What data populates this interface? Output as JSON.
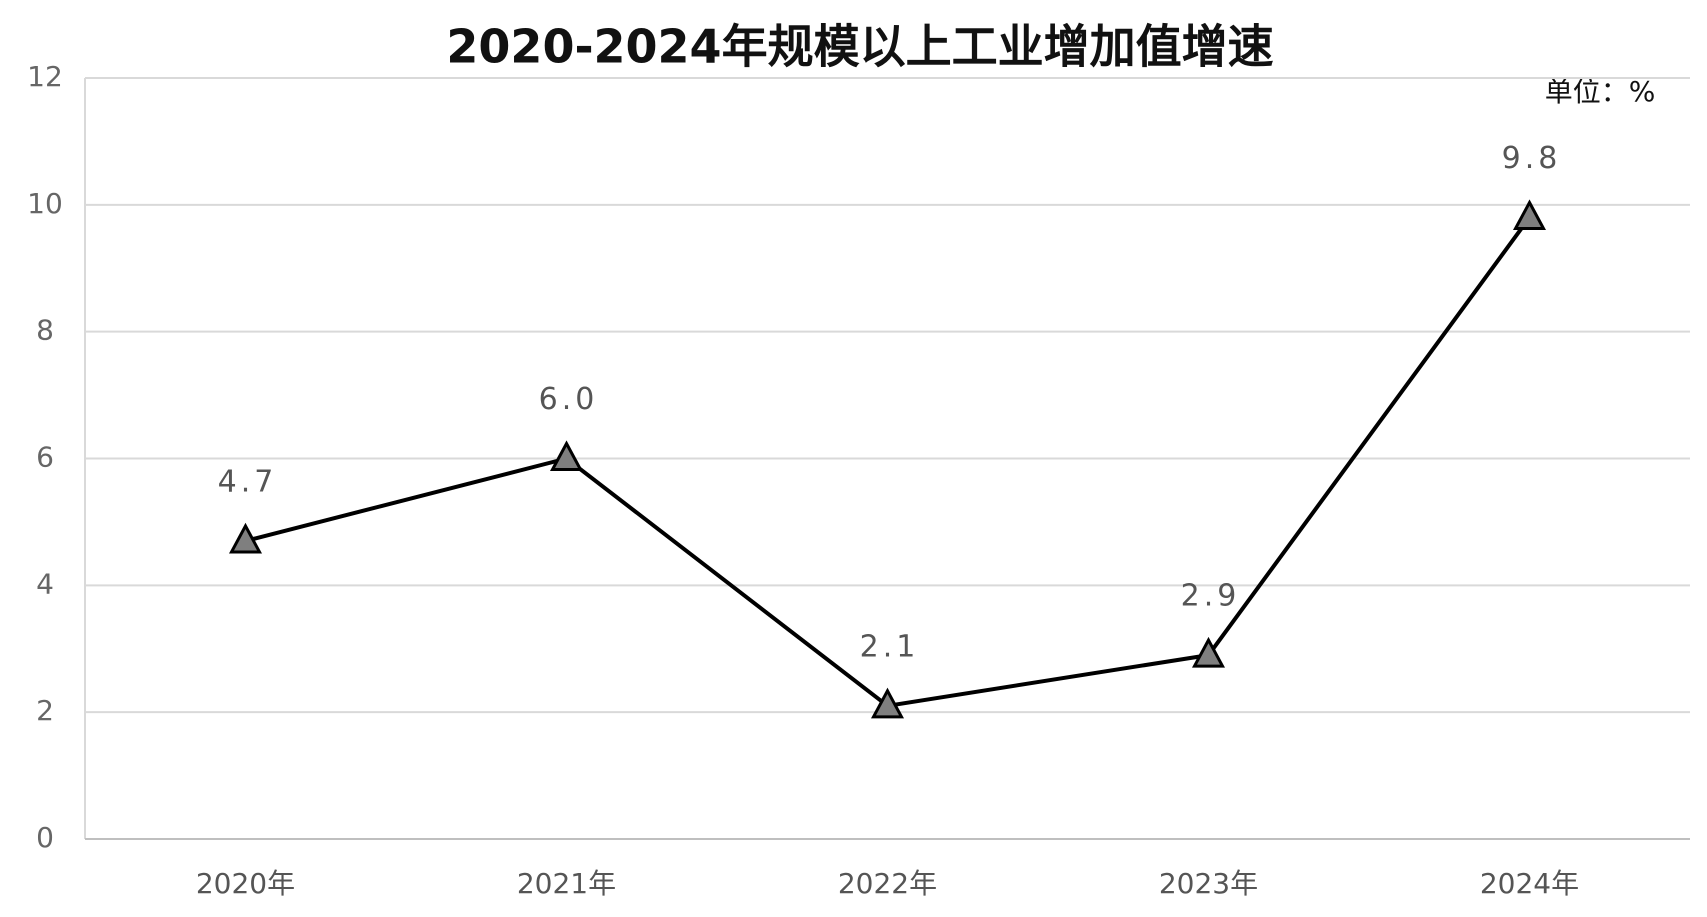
{
  "chart_data": {
    "type": "line",
    "title": "2020-2024年规模以上工业增加值增速",
    "unit": "单位：%",
    "categories": [
      "2020年",
      "2021年",
      "2022年",
      "2023年",
      "2024年"
    ],
    "values": [
      4.7,
      6.0,
      2.1,
      2.9,
      9.8
    ],
    "value_labels": [
      "4.7",
      "6.0",
      "2.1",
      "2.9",
      "9.8"
    ],
    "color": "#000000",
    "marker_color": "#7f7f7f",
    "ylim": [
      0,
      12
    ],
    "yticks": [
      0,
      2,
      4,
      6,
      8,
      10,
      12
    ],
    "grid": true
  }
}
